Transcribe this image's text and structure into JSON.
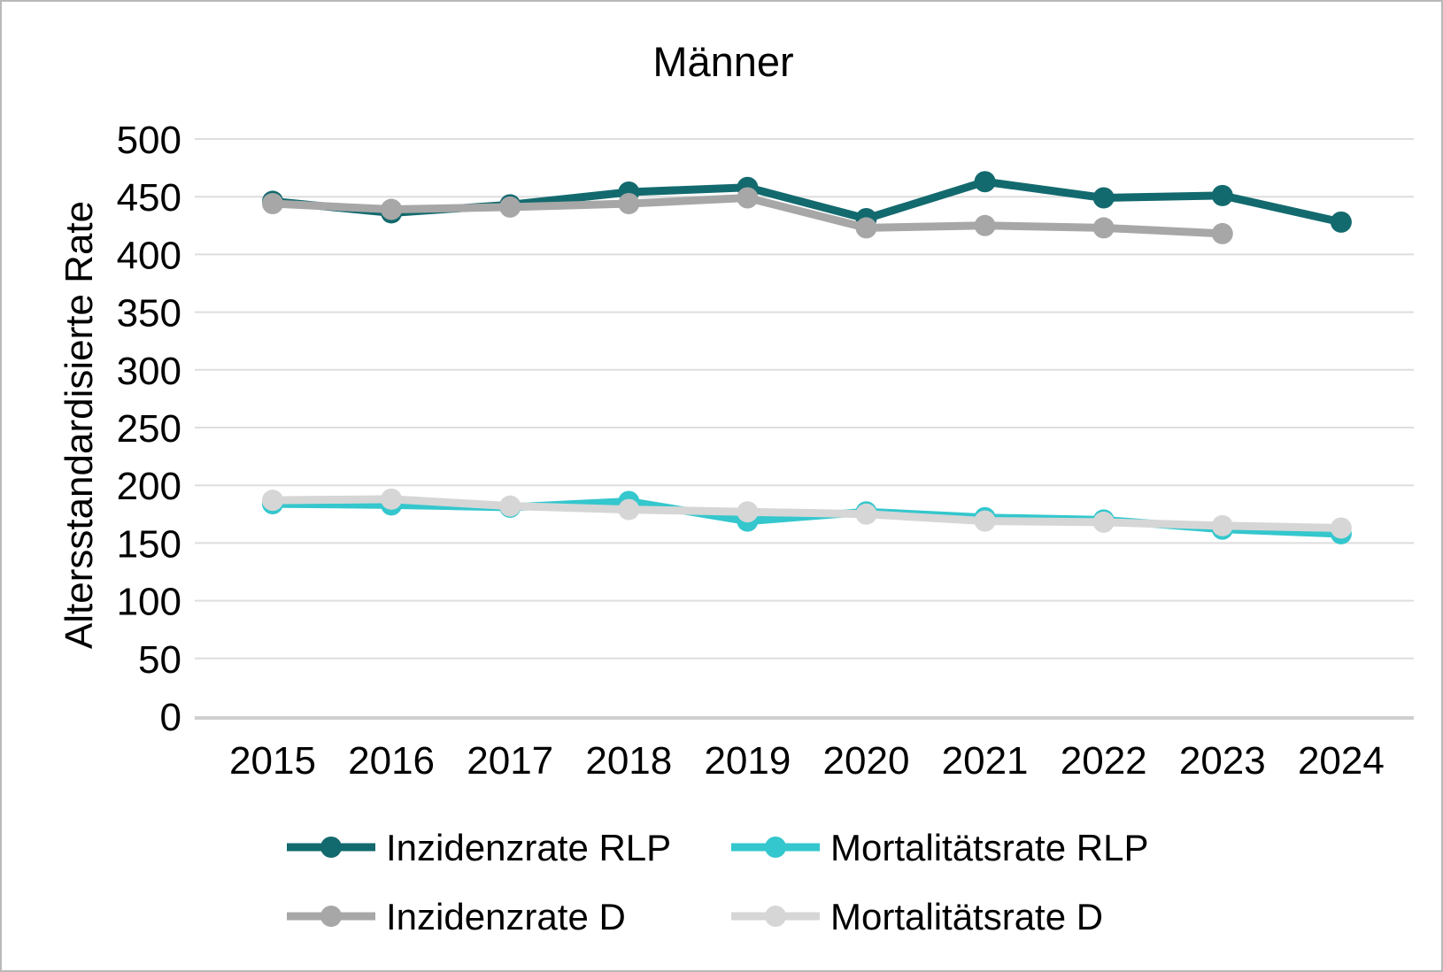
{
  "page": {
    "background": "#ffffff",
    "border_color": "#b9b9b9"
  },
  "chart_data": {
    "type": "line",
    "title": "Männer",
    "ylabel": "Altersstandardisierte Rate",
    "xlabel": "",
    "categories": [
      "2015",
      "2016",
      "2017",
      "2018",
      "2019",
      "2020",
      "2021",
      "2022",
      "2023",
      "2024"
    ],
    "ylim": [
      0,
      500
    ],
    "ytick_step": 50,
    "yticks": [
      0,
      50,
      100,
      150,
      200,
      250,
      300,
      350,
      400,
      450,
      500
    ],
    "grid": true,
    "grid_color": "#dedede",
    "axis_line_color": "#cfcfcf",
    "text_color": "#000000",
    "legend_position": "bottom",
    "legend_columns": 2,
    "series": [
      {
        "name": "Inzidenzrate RLP",
        "color": "#136a6e",
        "values": [
          446,
          436,
          443,
          454,
          458,
          431,
          463,
          449,
          451,
          428
        ]
      },
      {
        "name": "Mortalitätsrate RLP",
        "color": "#34c7cd",
        "values": [
          184,
          183,
          181,
          186,
          169,
          177,
          172,
          170,
          162,
          158
        ]
      },
      {
        "name": "Inzidenzrate D",
        "color": "#a7a7a7",
        "values": [
          444,
          439,
          441,
          444,
          449,
          423,
          425,
          423,
          418,
          null
        ]
      },
      {
        "name": "Mortalitätsrate D",
        "color": "#d6d6d6",
        "values": [
          187,
          188,
          182,
          179,
          177,
          175,
          169,
          168,
          165,
          163
        ]
      }
    ]
  }
}
